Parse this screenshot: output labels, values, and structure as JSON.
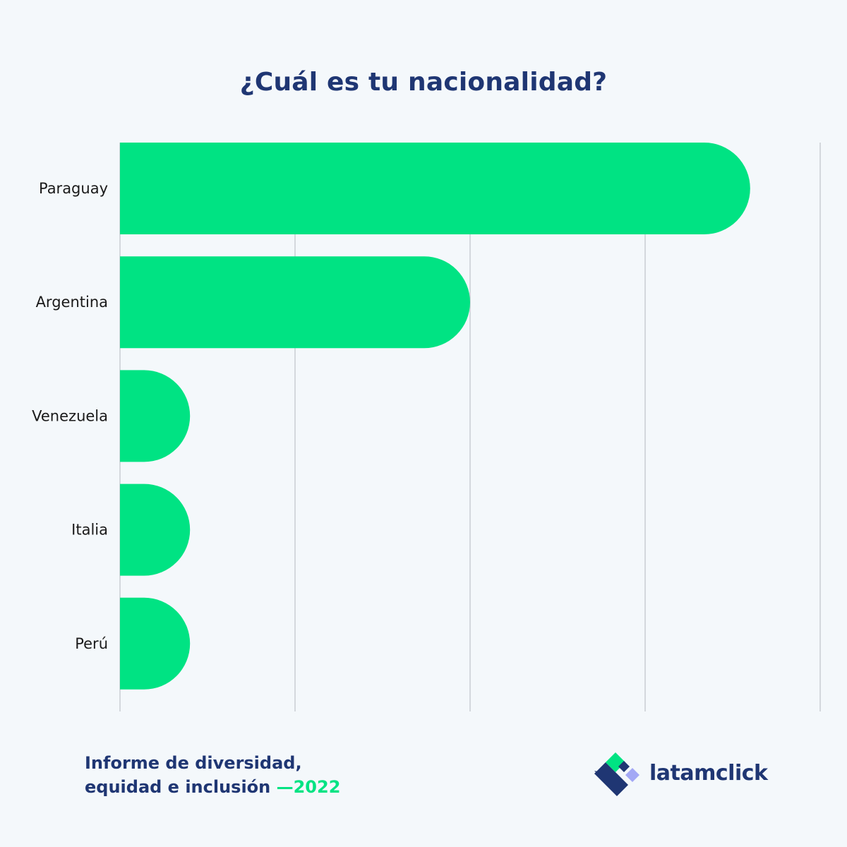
{
  "chart_data": {
    "type": "bar",
    "orientation": "horizontal",
    "title": "¿Cuál es tu nacionalidad?",
    "categories": [
      "Paraguay",
      "Argentina",
      "Venezuela",
      "Italia",
      "Perú"
    ],
    "values": [
      18,
      10,
      2,
      2,
      2
    ],
    "xlim": [
      0,
      20
    ],
    "grid": true,
    "bar_color": "#00e383",
    "grid_color": "#c9cdd3",
    "label_color": "#1a1a1a"
  },
  "footer": {
    "line1": "Informe de diversidad,",
    "line2": "equidad e inclusión",
    "year": "—2022"
  },
  "brand": {
    "name": "latamclick",
    "logo_icon": "latamclick-logo-icon",
    "colors": {
      "navy": "#1f3673",
      "green": "#00e383",
      "lavender": "#a3a8f5"
    }
  }
}
